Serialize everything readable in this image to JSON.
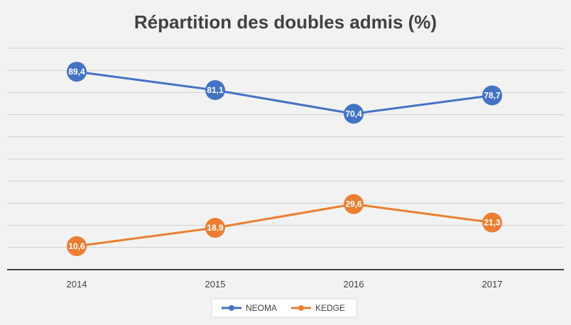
{
  "chart_data": {
    "type": "line",
    "title": "Répartition des doubles admis (%)",
    "categories": [
      "2014",
      "2015",
      "2016",
      "2017"
    ],
    "ylim": [
      0,
      100
    ],
    "grid": true,
    "legend_position": "bottom",
    "series": [
      {
        "name": "NEOMA",
        "color": "#4472c4",
        "values": [
          89.4,
          81.1,
          70.4,
          78.7
        ],
        "labels": [
          "89,4",
          "81,1",
          "70,4",
          "78,7"
        ]
      },
      {
        "name": "KEDGE",
        "color": "#ed7d31",
        "values": [
          10.6,
          18.9,
          29.6,
          21.3
        ],
        "labels": [
          "10,6",
          "18,9",
          "29,6",
          "21,3"
        ]
      }
    ]
  }
}
